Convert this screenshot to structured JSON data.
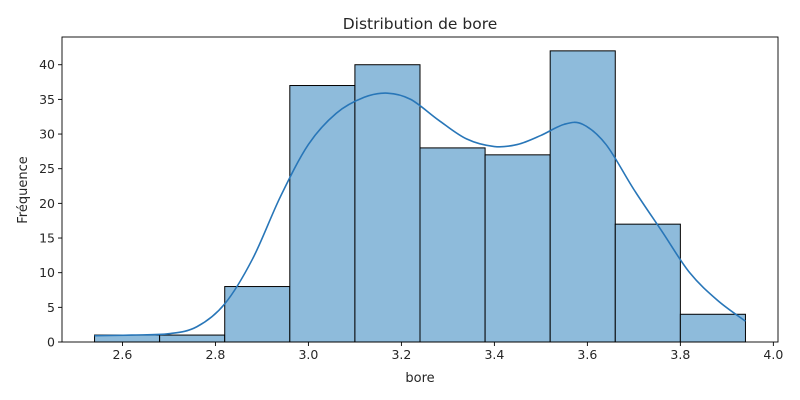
{
  "chart_data": {
    "type": "histogram",
    "title": "Distribution de bore",
    "xlabel": "bore",
    "ylabel": "Fréquence",
    "xlim": [
      2.47,
      4.01
    ],
    "ylim": [
      0,
      44
    ],
    "x_ticks": [
      2.6,
      2.8,
      3.0,
      3.2,
      3.4,
      3.6,
      3.8,
      4.0
    ],
    "x_tick_labels": [
      "2.6",
      "2.8",
      "3.0",
      "3.2",
      "3.4",
      "3.6",
      "3.8",
      "4.0"
    ],
    "y_ticks": [
      0,
      5,
      10,
      15,
      20,
      25,
      30,
      35,
      40
    ],
    "y_tick_labels": [
      "0",
      "5",
      "10",
      "15",
      "20",
      "25",
      "30",
      "35",
      "40"
    ],
    "bins": [
      {
        "x0": 2.54,
        "x1": 2.68,
        "count": 1
      },
      {
        "x0": 2.68,
        "x1": 2.82,
        "count": 1
      },
      {
        "x0": 2.82,
        "x1": 2.96,
        "count": 8
      },
      {
        "x0": 2.96,
        "x1": 3.1,
        "count": 37
      },
      {
        "x0": 3.1,
        "x1": 3.24,
        "count": 40
      },
      {
        "x0": 3.24,
        "x1": 3.38,
        "count": 28
      },
      {
        "x0": 3.38,
        "x1": 3.52,
        "count": 27
      },
      {
        "x0": 3.52,
        "x1": 3.66,
        "count": 42
      },
      {
        "x0": 3.66,
        "x1": 3.8,
        "count": 17
      },
      {
        "x0": 3.8,
        "x1": 3.94,
        "count": 4
      }
    ],
    "kde": {
      "x": [
        2.54,
        2.62,
        2.7,
        2.76,
        2.82,
        2.88,
        2.94,
        3.0,
        3.06,
        3.12,
        3.17,
        3.22,
        3.28,
        3.34,
        3.4,
        3.45,
        3.5,
        3.55,
        3.59,
        3.64,
        3.7,
        3.76,
        3.82,
        3.88,
        3.94
      ],
      "y": [
        0.9,
        1.0,
        1.2,
        2.2,
        5.5,
        12.0,
        21.0,
        28.5,
        33.0,
        35.3,
        35.9,
        35.0,
        32.0,
        29.3,
        28.2,
        28.5,
        29.8,
        31.4,
        31.4,
        28.5,
        22.0,
        16.0,
        10.0,
        6.0,
        3.0
      ]
    },
    "bar_fill": "#8ebbdb",
    "bar_edge": "#000000",
    "line_color": "#2876b8",
    "grid": false,
    "legend": "none"
  }
}
